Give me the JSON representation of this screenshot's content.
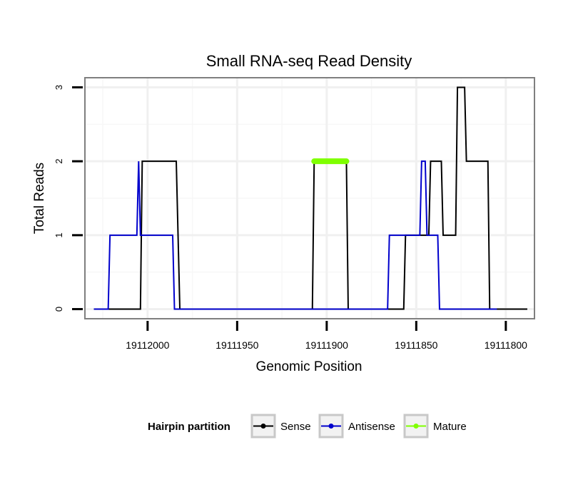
{
  "chart_data": {
    "type": "line",
    "title": "Small RNA-seq Read Density",
    "xlabel": "Genomic Position",
    "ylabel": "Total Reads",
    "x_reversed": true,
    "xlim": [
      19112035,
      19111784
    ],
    "ylim": [
      -0.13,
      3.13
    ],
    "x_ticks": [
      19112000,
      19111950,
      19111900,
      19111850,
      19111800
    ],
    "x_tick_labels": [
      "19112000",
      "19111950",
      "19111900",
      "19111850",
      "19111800"
    ],
    "y_ticks": [
      0,
      1,
      2,
      3
    ],
    "y_tick_labels": [
      "0",
      "1",
      "2",
      "3"
    ],
    "grid": true,
    "legend": {
      "title": "Hairpin partition",
      "position": "bottom",
      "entries": [
        "Sense",
        "Antisense",
        "Mature"
      ]
    },
    "series": [
      {
        "name": "Sense",
        "color": "#000000",
        "points": [
          [
            19112030,
            0
          ],
          [
            19112004,
            0
          ],
          [
            19112003,
            2
          ],
          [
            19111984,
            2
          ],
          [
            19111982,
            0
          ],
          [
            19111908,
            0
          ],
          [
            19111907,
            2
          ],
          [
            19111889,
            2
          ],
          [
            19111888,
            0
          ],
          [
            19111857,
            0
          ],
          [
            19111856,
            1
          ],
          [
            19111843,
            1
          ],
          [
            19111842,
            2
          ],
          [
            19111836,
            2
          ],
          [
            19111835,
            1
          ],
          [
            19111828,
            1
          ],
          [
            19111827,
            3
          ],
          [
            19111823,
            3
          ],
          [
            19111822,
            2
          ],
          [
            19111810,
            2
          ],
          [
            19111809,
            0
          ],
          [
            19111788,
            0
          ]
        ]
      },
      {
        "name": "Antisense",
        "color": "#0000cc",
        "points": [
          [
            19112030,
            0
          ],
          [
            19112022,
            0
          ],
          [
            19112021,
            1
          ],
          [
            19112006,
            1
          ],
          [
            19112005,
            2
          ],
          [
            19112004,
            1
          ],
          [
            19111986,
            1
          ],
          [
            19111985,
            0
          ],
          [
            19111866,
            0
          ],
          [
            19111865,
            1
          ],
          [
            19111848,
            1
          ],
          [
            19111847,
            2
          ],
          [
            19111845,
            2
          ],
          [
            19111844,
            1
          ],
          [
            19111838,
            1
          ],
          [
            19111837,
            0
          ],
          [
            19111805,
            0
          ]
        ]
      },
      {
        "name": "Mature",
        "color": "#7fff00",
        "points": [
          [
            19111907,
            2
          ],
          [
            19111889,
            2
          ]
        ]
      }
    ]
  }
}
